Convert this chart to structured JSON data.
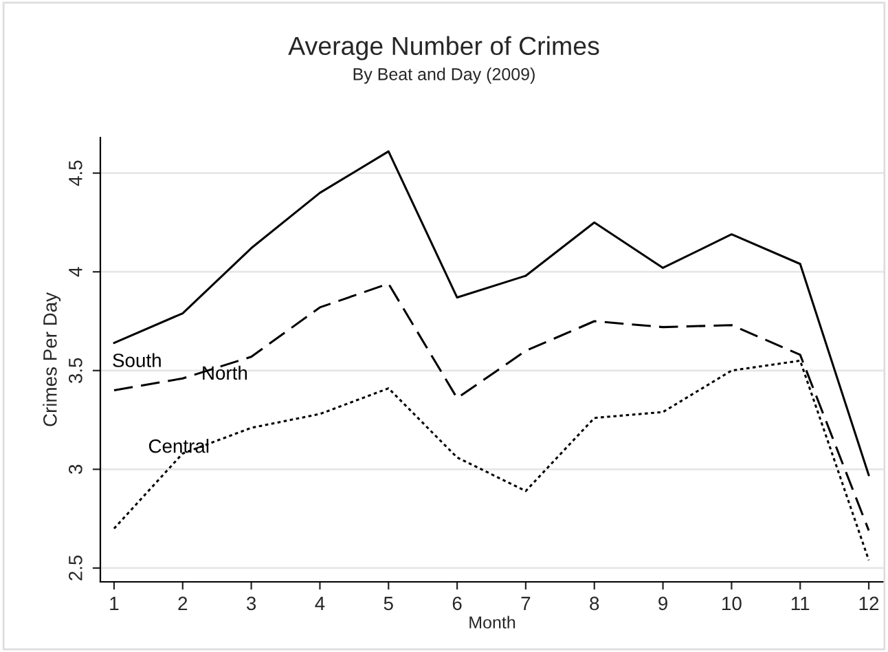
{
  "chart_data": {
    "type": "line",
    "title": "Average Number of Crimes",
    "subtitle": "By Beat and Day (2009)",
    "xlabel": "Month",
    "ylabel": "Crimes Per Day",
    "x": [
      1,
      2,
      3,
      4,
      5,
      6,
      7,
      8,
      9,
      10,
      11,
      12
    ],
    "series": [
      {
        "name": "South",
        "color": "#000000",
        "line_style": "solid",
        "values": [
          3.64,
          3.79,
          4.12,
          4.4,
          4.61,
          3.87,
          3.98,
          4.25,
          4.02,
          4.19,
          4.04,
          2.97
        ]
      },
      {
        "name": "North",
        "color": "#000000",
        "line_style": "dashed",
        "values": [
          3.4,
          3.46,
          3.57,
          3.82,
          3.94,
          3.36,
          3.6,
          3.75,
          3.72,
          3.73,
          3.58,
          2.69
        ]
      },
      {
        "name": "Central",
        "color": "#000000",
        "line_style": "dotted",
        "values": [
          2.7,
          3.08,
          3.21,
          3.28,
          3.41,
          3.06,
          2.89,
          3.26,
          3.29,
          3.5,
          3.55,
          2.54
        ]
      }
    ],
    "xlim": [
      0.8,
      12.22
    ],
    "ylim": [
      2.43,
      4.68
    ],
    "xticks": [
      1,
      2,
      3,
      4,
      5,
      6,
      7,
      8,
      9,
      10,
      11,
      12
    ],
    "yticks": [
      2.5,
      3,
      3.5,
      4,
      4.5
    ],
    "grid": "y",
    "legend": false,
    "marker": "none"
  }
}
